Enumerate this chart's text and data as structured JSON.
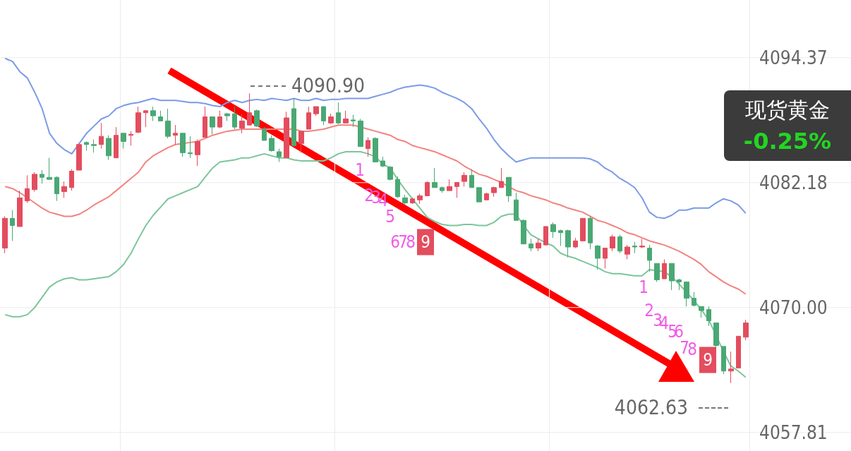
{
  "chart_data": {
    "type": "candlestick",
    "categories": [
      null,
      null,
      null,
      null,
      null,
      null,
      null,
      null,
      null,
      null,
      null,
      null,
      null,
      null,
      null,
      null,
      null,
      null,
      null,
      null,
      null,
      null,
      null,
      null,
      null,
      null,
      null,
      null,
      null,
      null,
      null,
      null,
      null,
      null,
      null,
      null,
      null,
      null,
      null,
      null,
      null,
      null,
      null,
      null,
      null,
      null,
      null,
      null,
      null,
      null,
      null,
      null,
      null,
      null,
      null,
      null,
      null,
      null,
      null,
      null,
      null,
      null,
      null,
      null,
      null,
      null,
      null,
      null,
      null,
      null,
      null,
      null,
      null,
      null,
      null,
      null,
      null,
      null,
      null,
      null,
      null,
      null,
      null,
      null,
      null,
      null,
      null,
      null,
      null,
      null,
      null,
      null,
      null,
      null,
      null,
      null,
      null,
      null,
      null,
      null,
      null
    ],
    "ohlc": [
      [
        4075.8,
        4078.9,
        4075.3,
        4078.7
      ],
      [
        4078.7,
        4079.5,
        4076.5,
        4078.0
      ],
      [
        4077.9,
        4081.4,
        4077.9,
        4080.7
      ],
      [
        4080.4,
        4082.9,
        4080.2,
        4081.6
      ],
      [
        4081.5,
        4083.2,
        4081.3,
        4083.0
      ],
      [
        4083.0,
        4083.4,
        4082.1,
        4082.7
      ],
      [
        4082.7,
        4084.6,
        4082.5,
        4082.5
      ],
      [
        4082.7,
        4082.8,
        4080.4,
        4081.1
      ],
      [
        4081.3,
        4082.3,
        4080.7,
        4081.8
      ],
      [
        4081.7,
        4083.5,
        4081.4,
        4083.3
      ],
      [
        4083.4,
        4086.0,
        4083.4,
        4085.9
      ],
      [
        4086.1,
        4086.2,
        4085.3,
        4085.9
      ],
      [
        4085.9,
        4086.4,
        4085.1,
        4085.8
      ],
      [
        4085.9,
        4088.0,
        4085.5,
        4086.7
      ],
      [
        4086.5,
        4086.8,
        4084.4,
        4084.8
      ],
      [
        4084.6,
        4087.6,
        4084.6,
        4086.8
      ],
      [
        4087.0,
        4087.0,
        4085.5,
        4086.2
      ],
      [
        4086.8,
        4087.2,
        4085.8,
        4086.9
      ],
      [
        4087.1,
        4089.6,
        4087.0,
        4089.0
      ],
      [
        4089.0,
        4089.2,
        4087.6,
        4089.2
      ],
      [
        4089.2,
        4089.6,
        4088.2,
        4088.7
      ],
      [
        4088.6,
        4089.2,
        4088.2,
        4088.2
      ],
      [
        4088.2,
        4089.4,
        4086.5,
        4086.7
      ],
      [
        4086.8,
        4087.8,
        4085.9,
        4087.0
      ],
      [
        4087.0,
        4087.0,
        4084.7,
        4085.1
      ],
      [
        4085.1,
        4086.7,
        4084.6,
        4085.0
      ],
      [
        4084.9,
        4086.4,
        4083.8,
        4086.2
      ],
      [
        4086.6,
        4089.6,
        4086.6,
        4088.6
      ],
      [
        4088.6,
        4088.6,
        4086.9,
        4087.6
      ],
      [
        4087.6,
        4089.2,
        4087.5,
        4088.6
      ],
      [
        4088.9,
        4089.0,
        4088.2,
        4088.7
      ],
      [
        4088.9,
        4089.6,
        4087.4,
        4087.6
      ],
      [
        4087.5,
        4088.9,
        4087.0,
        4088.2
      ],
      [
        4087.8,
        4090.9,
        4087.8,
        4089.0
      ],
      [
        4089.2,
        4089.3,
        4087.6,
        4087.7
      ],
      [
        4087.4,
        4087.6,
        4086.3,
        4086.3
      ],
      [
        4086.5,
        4086.8,
        4085.2,
        4085.3
      ],
      [
        4085.2,
        4085.5,
        4084.2,
        4084.7
      ],
      [
        4084.6,
        4089.1,
        4084.6,
        4088.5
      ],
      [
        4089.4,
        4090.4,
        4085.7,
        4085.8
      ],
      [
        4086.0,
        4087.2,
        4085.1,
        4087.2
      ],
      [
        4087.4,
        4089.6,
        4087.4,
        4089.0
      ],
      [
        4088.9,
        4089.6,
        4088.7,
        4089.6
      ],
      [
        4089.6,
        4089.6,
        4087.8,
        4088.2
      ],
      [
        4088.0,
        4088.9,
        4087.9,
        4088.6
      ],
      [
        4089.0,
        4090.0,
        4087.9,
        4088.0
      ],
      [
        4088.0,
        4089.2,
        4088.0,
        4088.4
      ],
      [
        4088.3,
        4088.8,
        4087.6,
        4088.2
      ],
      [
        4088.2,
        4088.4,
        4085.7,
        4085.7
      ],
      [
        4085.5,
        4086.6,
        4084.7,
        4086.3
      ],
      [
        4086.5,
        4086.6,
        4084.2,
        4084.2
      ],
      [
        4084.3,
        4084.7,
        4083.7,
        4083.8
      ],
      [
        4083.7,
        4083.8,
        4082.4,
        4082.5
      ],
      [
        4082.5,
        4082.8,
        4080.7,
        4080.8
      ],
      [
        4080.7,
        4081.0,
        4080.0,
        4080.2
      ],
      [
        4080.2,
        4080.7,
        4080.1,
        4080.6
      ],
      [
        4080.5,
        4081.1,
        4080.1,
        4080.9
      ],
      [
        4080.9,
        4082.3,
        4080.9,
        4082.2
      ],
      [
        4082.2,
        4083.6,
        4081.7,
        4081.7
      ],
      [
        4081.7,
        4081.8,
        4081.2,
        4081.4
      ],
      [
        4081.4,
        4082.5,
        4081.4,
        4081.8
      ],
      [
        4081.8,
        4082.2,
        4080.7,
        4082.2
      ],
      [
        4082.3,
        4083.2,
        4081.8,
        4082.9
      ],
      [
        4082.9,
        4083.5,
        4081.7,
        4081.7
      ],
      [
        4081.7,
        4081.7,
        4080.3,
        4080.3
      ],
      [
        4080.5,
        4081.2,
        4080.5,
        4081.1
      ],
      [
        4081.2,
        4081.8,
        4080.8,
        4081.7
      ],
      [
        4081.7,
        4083.6,
        4081.7,
        4082.3
      ],
      [
        4082.7,
        4082.7,
        4080.3,
        4080.9
      ],
      [
        4080.5,
        4081.2,
        4078.5,
        4078.5
      ],
      [
        4078.5,
        4078.6,
        4076.2,
        4076.2
      ],
      [
        4076.2,
        4076.7,
        4075.5,
        4075.8
      ],
      [
        4075.8,
        4076.7,
        4075.5,
        4076.3
      ],
      [
        4076.1,
        4077.9,
        4076.1,
        4077.9
      ],
      [
        4078.1,
        4078.3,
        4076.8,
        4077.4
      ],
      [
        4077.5,
        4077.6,
        4076.0,
        4077.3
      ],
      [
        4077.5,
        4077.6,
        4074.9,
        4075.9
      ],
      [
        4075.9,
        4076.8,
        4075.8,
        4076.5
      ],
      [
        4076.5,
        4078.7,
        4076.5,
        4078.7
      ],
      [
        4078.7,
        4078.9,
        4075.7,
        4076.3
      ],
      [
        4076.0,
        4076.1,
        4073.7,
        4074.8
      ],
      [
        4074.8,
        4075.8,
        4073.8,
        4075.8
      ],
      [
        4075.8,
        4077.1,
        4075.5,
        4076.9
      ],
      [
        4076.9,
        4077.1,
        4075.3,
        4075.5
      ],
      [
        4075.2,
        4076.1,
        4074.7,
        4075.9
      ],
      [
        4076.0,
        4076.4,
        4075.3,
        4075.9
      ],
      [
        4075.9,
        4076.7,
        4075.8,
        4076.0
      ],
      [
        4075.8,
        4076.1,
        4073.5,
        4074.6
      ],
      [
        4074.3,
        4074.3,
        4072.5,
        4072.7
      ],
      [
        4072.8,
        4074.7,
        4072.8,
        4074.3
      ],
      [
        4074.3,
        4074.3,
        4071.7,
        4072.6
      ],
      [
        4072.7,
        4072.8,
        4071.7,
        4072.5
      ],
      [
        4072.5,
        4072.5,
        4070.1,
        4070.9
      ],
      [
        4070.9,
        4071.5,
        4070.1,
        4070.2
      ],
      [
        4070.1,
        4070.1,
        4069.0,
        4069.7
      ],
      [
        4069.8,
        4070.1,
        4068.2,
        4068.7
      ],
      [
        4068.5,
        4068.5,
        4066.1,
        4066.3
      ],
      [
        4066.2,
        4066.2,
        4063.5,
        4063.8
      ],
      [
        4063.8,
        4065.7,
        4062.63,
        4064.0
      ],
      [
        4064.1,
        4067.2,
        4064.1,
        4067.2
      ],
      [
        4067.1,
        4068.8,
        4066.8,
        4068.5
      ]
    ],
    "colors": [
      "#e34d5e",
      "#4aa874",
      "#e34d5e",
      "#e34d5e",
      "#e34d5e",
      "#4aa874",
      "#4aa874",
      "#4aa874",
      "#e34d5e",
      "#e34d5e",
      "#e34d5e",
      "#4aa874",
      "#4aa874",
      "#e34d5e",
      "#4aa874",
      "#e34d5e",
      "#4aa874",
      "#e34d5e",
      "#e34d5e",
      "#e34d5e",
      "#4aa874",
      "#4aa874",
      "#4aa874",
      "#e34d5e",
      "#4aa874",
      "#4aa874",
      "#e34d5e",
      "#e34d5e",
      "#4aa874",
      "#e34d5e",
      "#4aa874",
      "#4aa874",
      "#e34d5e",
      "#e34d5e",
      "#4aa874",
      "#4aa874",
      "#4aa874",
      "#4aa874",
      "#e34d5e",
      "#4aa874",
      "#e34d5e",
      "#e34d5e",
      "#e34d5e",
      "#4aa874",
      "#e34d5e",
      "#4aa874",
      "#e34d5e",
      "#4aa874",
      "#4aa874",
      "#e34d5e",
      "#4aa874",
      "#4aa874",
      "#4aa874",
      "#4aa874",
      "#4aa874",
      "#e34d5e",
      "#e34d5e",
      "#e34d5e",
      "#4aa874",
      "#4aa874",
      "#e34d5e",
      "#e34d5e",
      "#e34d5e",
      "#4aa874",
      "#4aa874",
      "#e34d5e",
      "#e34d5e",
      "#e34d5e",
      "#4aa874",
      "#4aa874",
      "#4aa874",
      "#4aa874",
      "#e34d5e",
      "#e34d5e",
      "#4aa874",
      "#4aa874",
      "#4aa874",
      "#e34d5e",
      "#e34d5e",
      "#4aa874",
      "#4aa874",
      "#e34d5e",
      "#e34d5e",
      "#4aa874",
      "#e34d5e",
      "#4aa874",
      "#e34d5e",
      "#4aa874",
      "#4aa874",
      "#e34d5e",
      "#4aa874",
      "#4aa874",
      "#4aa874",
      "#4aa874",
      "#4aa874",
      "#4aa874",
      "#4aa874",
      "#4aa874",
      "#e34d5e",
      "#e34d5e",
      "#e34d5e"
    ],
    "series": [
      {
        "type": "line",
        "color": "#7b9be8",
        "values": [
          4094.3,
          4094.0,
          4093.0,
          4092.4,
          4091.0,
          4089.4,
          4087.0,
          4086.0,
          4085.4,
          4085.0,
          4086.0,
          4087.0,
          4087.7,
          4088.4,
          4088.7,
          4089.4,
          4089.7,
          4089.9,
          4090.0,
          4090.2,
          4090.4,
          4090.2,
          4090.2,
          4090.2,
          4090.1,
          4090.0,
          4090.0,
          4089.9,
          4089.7,
          4089.6,
          4090.0,
          4090.2,
          4090.0,
          4090.2,
          4090.3,
          4090.2,
          4090.4,
          4090.3,
          4090.2,
          4090.4,
          4090.2,
          4090.2,
          4090.4,
          4090.2,
          4090.3,
          4090.3,
          4090.4,
          4090.4,
          4090.4,
          4090.4,
          4090.6,
          4090.8,
          4091.0,
          4091.3,
          4091.5,
          4091.6,
          4091.7,
          4091.6,
          4091.4,
          4091.0,
          4090.7,
          4090.4,
          4090.0,
          4089.4,
          4088.4,
          4087.5,
          4086.4,
          4085.5,
          4084.8,
          4084.2,
          4084.4,
          4084.6,
          4084.6,
          4084.6,
          4084.6,
          4084.6,
          4084.6,
          4084.6,
          4084.6,
          4084.5,
          4084.2,
          4083.6,
          4083.2,
          4082.6,
          4082.2,
          4081.7,
          4080.7,
          4079.3,
          4078.8,
          4078.7,
          4079.0,
          4079.5,
          4079.5,
          4079.7,
          4079.7,
          4079.7,
          4080.2,
          4080.6,
          4080.4,
          4080.0,
          4079.2
        ]
      },
      {
        "type": "line",
        "color": "#f3837f",
        "values": [
          4081.8,
          4081.6,
          4081.2,
          4080.7,
          4080.2,
          4079.7,
          4079.3,
          4079.1,
          4078.9,
          4078.9,
          4079.1,
          4079.5,
          4080.0,
          4080.4,
          4080.8,
          4081.4,
          4082.0,
          4082.6,
          4083.2,
          4084.2,
          4084.8,
          4085.2,
          4085.6,
          4085.9,
          4086.0,
          4086.1,
          4086.2,
          4086.5,
          4086.8,
          4087.0,
          4087.2,
          4087.3,
          4087.4,
          4087.4,
          4087.4,
          4087.4,
          4087.4,
          4087.4,
          4087.4,
          4087.4,
          4087.2,
          4087.2,
          4087.3,
          4087.4,
          4087.6,
          4087.8,
          4087.8,
          4087.8,
          4087.6,
          4087.4,
          4087.2,
          4087.0,
          4086.8,
          4086.4,
          4086.2,
          4085.8,
          4085.6,
          4085.4,
          4085.2,
          4084.9,
          4084.6,
          4084.3,
          4083.8,
          4083.4,
          4083.0,
          4082.8,
          4082.5,
          4082.2,
          4081.8,
          4081.4,
          4081.2,
          4080.9,
          4080.7,
          4080.5,
          4080.2,
          4080.0,
          4079.7,
          4079.5,
          4079.3,
          4078.9,
          4078.5,
          4078.3,
          4078.0,
          4077.7,
          4077.3,
          4077.1,
          4076.8,
          4076.5,
          4076.3,
          4076.1,
          4075.8,
          4075.5,
          4075.1,
          4074.7,
          4074.2,
          4073.5,
          4073.0,
          4072.5,
          4072.1,
          4071.8,
          4071.3
        ]
      },
      {
        "type": "line",
        "color": "#7cc69b",
        "values": [
          4069.3,
          4069.1,
          4069.1,
          4069.3,
          4070.0,
          4071.0,
          4072.0,
          4072.5,
          4072.8,
          4072.9,
          4072.7,
          4072.7,
          4072.8,
          4072.9,
          4073.0,
          4073.5,
          4074.2,
          4075.3,
          4076.7,
          4078.0,
          4079.0,
          4079.8,
          4080.6,
          4080.9,
          4081.2,
          4081.5,
          4081.8,
          4082.7,
          4083.6,
          4084.2,
          4084.3,
          4084.4,
          4084.6,
          4084.6,
          4084.8,
          4085.0,
          4084.8,
          4084.6,
          4084.6,
          4084.4,
          4084.3,
          4084.3,
          4084.3,
          4084.3,
          4084.6,
          4085.0,
          4085.2,
          4085.2,
          4085.2,
          4085.0,
          4084.7,
          4084.0,
          4083.6,
          4082.5,
          4081.5,
          4080.6,
          4079.7,
          4078.8,
          4078.4,
          4078.1,
          4078.0,
          4078.0,
          4078.1,
          4078.1,
          4078.0,
          4078.0,
          4078.3,
          4078.9,
          4079.1,
          4079.1,
          4078.0,
          4077.1,
          4076.7,
          4076.3,
          4076.0,
          4075.3,
          4075.0,
          4074.8,
          4074.5,
          4074.2,
          4073.9,
          4073.5,
          4073.3,
          4073.3,
          4073.2,
          4073.1,
          4073.1,
          4073.7,
          4073.6,
          4073.5,
          4073.0,
          4072.3,
          4071.5,
          4070.7,
          4069.8,
          4068.8,
          4067.3,
          4065.7,
          4064.3,
          4063.8,
          4063.2
        ]
      }
    ],
    "ylim": [
      4056.0,
      4100.0
    ],
    "yticks": [
      4057.81,
      {
        "value": 4070,
        "label": "4070.00"
      },
      4082.18,
      4094.37
    ],
    "grid": true,
    "tick_labels": "y",
    "annotations": [
      "4090.90",
      "4062.63",
      "现货黄金",
      "-0.25%",
      "1",
      "2",
      "3",
      "4",
      "5",
      "6",
      "7",
      "8",
      "9",
      "1",
      "2",
      "3",
      "4",
      "5",
      "6",
      "7",
      "8",
      "9"
    ]
  }
}
